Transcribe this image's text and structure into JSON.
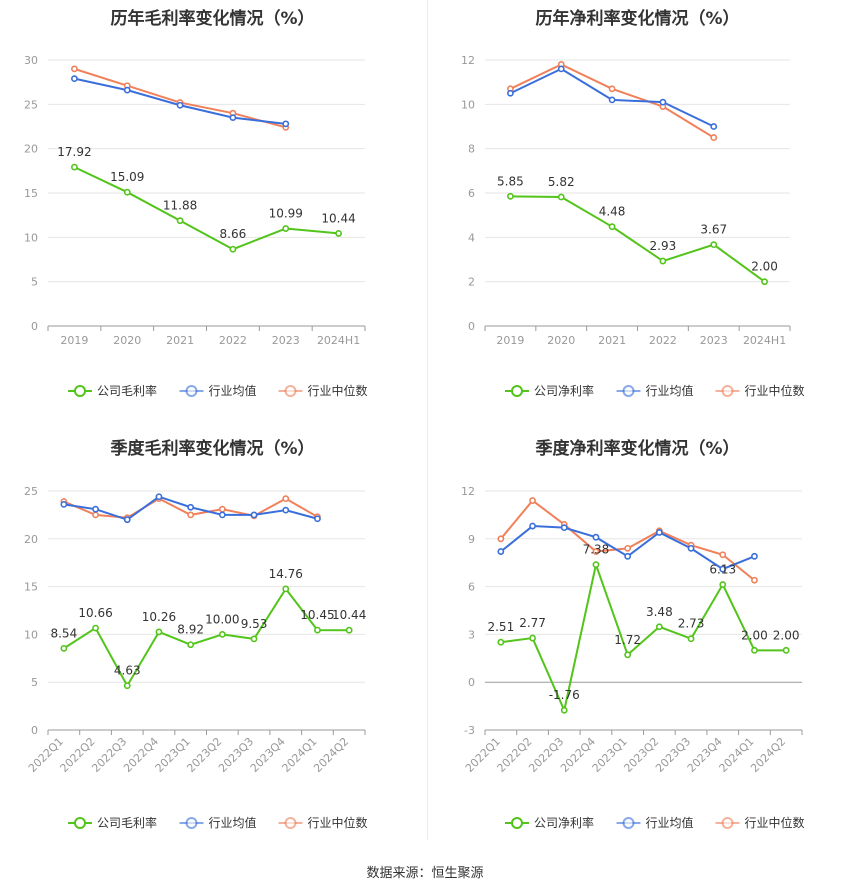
{
  "source_text": "数据来源：恒生聚源",
  "chart_data": [
    {
      "id": "annual-gross",
      "type": "line",
      "title": "历年毛利率变化情况（%）",
      "categories": [
        "2019",
        "2020",
        "2021",
        "2022",
        "2023",
        "2024H1"
      ],
      "ylim": [
        0,
        30
      ],
      "yticks": [
        0,
        5,
        10,
        15,
        20,
        25,
        30
      ],
      "grid": true,
      "legend_position": "bottom",
      "series": [
        {
          "name": "公司毛利率",
          "color": "#52c41a",
          "values": [
            17.92,
            15.09,
            11.88,
            8.66,
            10.99,
            10.44
          ],
          "labels": [
            "17.92",
            "15.09",
            "11.88",
            "8.66",
            "10.99",
            "10.44"
          ]
        },
        {
          "name": "行业均值",
          "color": "#3a6fdb",
          "values": [
            27.9,
            26.6,
            24.9,
            23.5,
            22.8,
            null
          ]
        },
        {
          "name": "行业中位数",
          "color": "#f0805a",
          "values": [
            29.0,
            27.1,
            25.2,
            24.0,
            22.4,
            null
          ]
        }
      ]
    },
    {
      "id": "annual-net",
      "type": "line",
      "title": "历年净利率变化情况（%）",
      "categories": [
        "2019",
        "2020",
        "2021",
        "2022",
        "2023",
        "2024H1"
      ],
      "ylim": [
        0,
        12
      ],
      "yticks": [
        0,
        2,
        4,
        6,
        8,
        10,
        12
      ],
      "grid": true,
      "legend_position": "bottom",
      "series": [
        {
          "name": "公司净利率",
          "color": "#52c41a",
          "values": [
            5.85,
            5.82,
            4.48,
            2.93,
            3.67,
            2.0
          ],
          "labels": [
            "5.85",
            "5.82",
            "4.48",
            "2.93",
            "3.67",
            "2.00"
          ]
        },
        {
          "name": "行业均值",
          "color": "#3a6fdb",
          "values": [
            10.5,
            11.6,
            10.2,
            10.1,
            9.0,
            null
          ]
        },
        {
          "name": "行业中位数",
          "color": "#f0805a",
          "values": [
            10.7,
            11.8,
            10.7,
            9.9,
            8.5,
            null
          ]
        }
      ]
    },
    {
      "id": "quarterly-gross",
      "type": "line",
      "title": "季度毛利率变化情况（%）",
      "categories": [
        "2022Q1",
        "2022Q2",
        "2022Q3",
        "2022Q4",
        "2023Q1",
        "2023Q2",
        "2023Q3",
        "2023Q4",
        "2024Q1",
        "2024Q2"
      ],
      "ylim": [
        0,
        25
      ],
      "yticks": [
        0,
        5,
        10,
        15,
        20,
        25
      ],
      "grid": true,
      "legend_position": "bottom",
      "series": [
        {
          "name": "公司毛利率",
          "color": "#52c41a",
          "values": [
            8.54,
            10.66,
            4.63,
            10.26,
            8.92,
            10.0,
            9.53,
            14.76,
            10.45,
            10.44
          ],
          "labels": [
            "8.54",
            "10.66",
            "4.63",
            "10.26",
            "8.92",
            "10.00",
            "9.53",
            "14.76",
            "10.45",
            "10.44"
          ]
        },
        {
          "name": "行业均值",
          "color": "#3a6fdb",
          "values": [
            23.6,
            23.1,
            22.0,
            24.4,
            23.3,
            22.5,
            22.5,
            23.0,
            22.1,
            null
          ]
        },
        {
          "name": "行业中位数",
          "color": "#f0805a",
          "values": [
            23.9,
            22.5,
            22.2,
            24.2,
            22.5,
            23.1,
            22.4,
            24.2,
            22.3,
            null
          ]
        }
      ]
    },
    {
      "id": "quarterly-net",
      "type": "line",
      "title": "季度净利率变化情况（%）",
      "categories": [
        "2022Q1",
        "2022Q2",
        "2022Q3",
        "2022Q4",
        "2023Q1",
        "2023Q2",
        "2023Q3",
        "2023Q4",
        "2024Q1",
        "2024Q2"
      ],
      "ylim": [
        -3,
        12
      ],
      "yticks": [
        -3,
        0,
        3,
        6,
        9,
        12
      ],
      "grid": true,
      "legend_position": "bottom",
      "series": [
        {
          "name": "公司净利率",
          "color": "#52c41a",
          "values": [
            2.51,
            2.77,
            -1.76,
            7.38,
            1.72,
            3.48,
            2.73,
            6.13,
            2.0,
            2.0
          ],
          "labels": [
            "2.51",
            "2.77",
            "-1.76",
            "7.38",
            "1.72",
            "3.48",
            "2.73",
            "6.13",
            "2.00",
            "2.00"
          ]
        },
        {
          "name": "行业均值",
          "color": "#3a6fdb",
          "values": [
            8.2,
            9.8,
            9.7,
            9.1,
            7.9,
            9.4,
            8.4,
            7.1,
            7.9,
            null
          ]
        },
        {
          "name": "行业中位数",
          "color": "#f0805a",
          "values": [
            9.0,
            11.4,
            9.9,
            8.2,
            8.4,
            9.5,
            8.6,
            8.0,
            6.4,
            null
          ]
        }
      ]
    }
  ]
}
